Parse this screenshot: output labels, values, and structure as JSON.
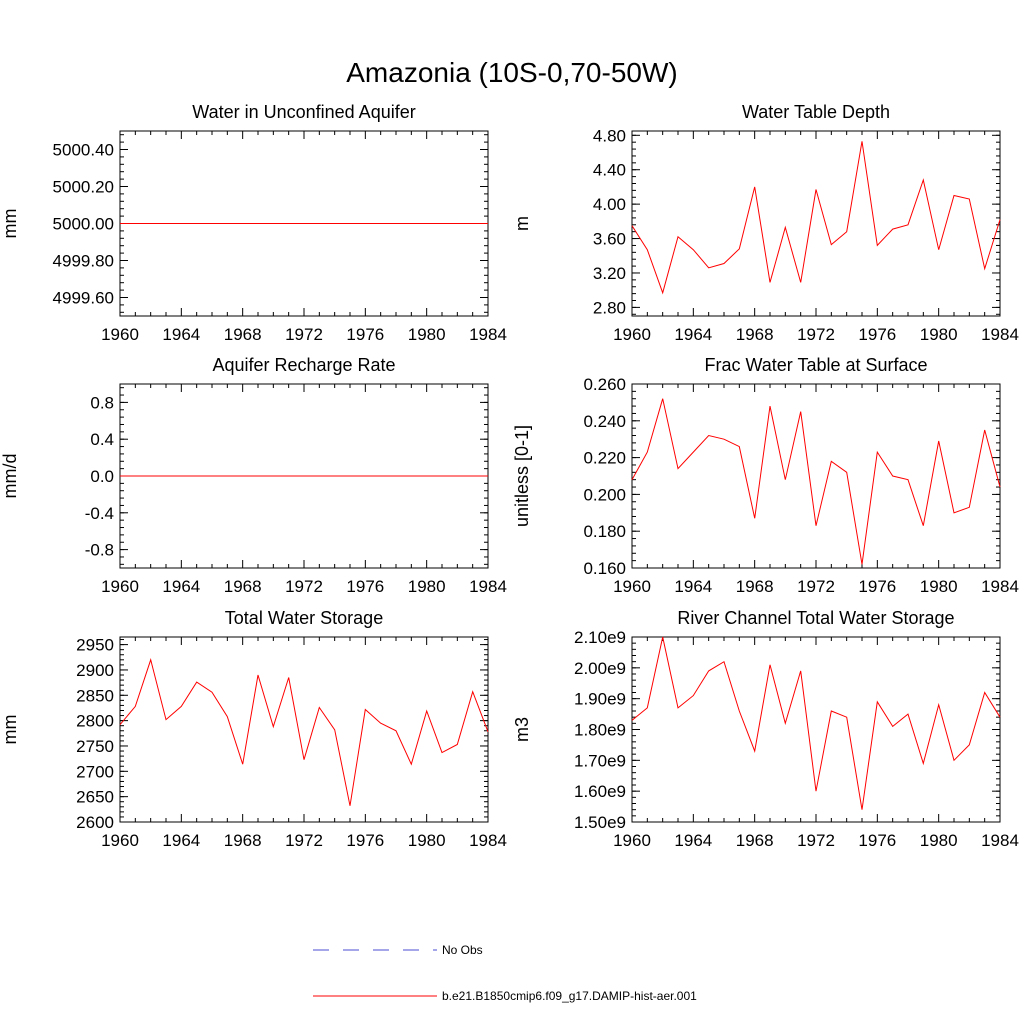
{
  "title": "Amazonia (10S-0,70-50W)",
  "colors": {
    "series": "#ff0000",
    "obs": "#4b4bd6",
    "axis": "#000000"
  },
  "legend": [
    {
      "label": "No Obs",
      "style": "dashed"
    },
    {
      "label": "b.e21.B1850cmip6.f09_g17.DAMIP-hist-aer.001",
      "style": "solid"
    }
  ],
  "chart_data": [
    {
      "type": "line",
      "title": "Water in Unconfined Aquifer",
      "ylabel": "mm",
      "xlim": [
        1960,
        1984
      ],
      "ylim": [
        4999.5,
        5000.5
      ],
      "x_ticks": [
        "1960",
        "1964",
        "1968",
        "1972",
        "1976",
        "1980",
        "1984"
      ],
      "y_ticks": [
        {
          "v": 4999.6,
          "label": "4999.60"
        },
        {
          "v": 4999.8,
          "label": "4999.80"
        },
        {
          "v": 5000.0,
          "label": "5000.00"
        },
        {
          "v": 5000.2,
          "label": "5000.20"
        },
        {
          "v": 5000.4,
          "label": "5000.40"
        }
      ],
      "series": [
        {
          "x": [
            1960,
            1961,
            1962,
            1963,
            1964,
            1965,
            1966,
            1967,
            1968,
            1969,
            1970,
            1971,
            1972,
            1973,
            1974,
            1975,
            1976,
            1977,
            1978,
            1979,
            1980,
            1981,
            1982,
            1983,
            1984
          ],
          "values": [
            5000,
            5000,
            5000,
            5000,
            5000,
            5000,
            5000,
            5000,
            5000,
            5000,
            5000,
            5000,
            5000,
            5000,
            5000,
            5000,
            5000,
            5000,
            5000,
            5000,
            5000,
            5000,
            5000,
            5000,
            5000
          ]
        }
      ]
    },
    {
      "type": "line",
      "title": "Water Table Depth",
      "ylabel": "m",
      "xlim": [
        1960,
        1984
      ],
      "ylim": [
        2.7,
        4.85
      ],
      "x_ticks": [
        "1960",
        "1964",
        "1968",
        "1972",
        "1976",
        "1980",
        "1984"
      ],
      "y_ticks": [
        {
          "v": 2.8,
          "label": "2.80"
        },
        {
          "v": 3.2,
          "label": "3.20"
        },
        {
          "v": 3.6,
          "label": "3.60"
        },
        {
          "v": 4.0,
          "label": "4.00"
        },
        {
          "v": 4.4,
          "label": "4.40"
        },
        {
          "v": 4.8,
          "label": "4.80"
        }
      ],
      "series": [
        {
          "x": [
            1960,
            1961,
            1962,
            1963,
            1964,
            1965,
            1966,
            1967,
            1968,
            1969,
            1970,
            1971,
            1972,
            1973,
            1974,
            1975,
            1976,
            1977,
            1978,
            1979,
            1980,
            1981,
            1982,
            1983,
            1984
          ],
          "values": [
            3.75,
            3.47,
            2.97,
            3.62,
            3.47,
            3.26,
            3.31,
            3.48,
            4.2,
            3.09,
            3.73,
            3.09,
            4.17,
            3.53,
            3.68,
            4.73,
            3.52,
            3.71,
            3.76,
            4.28,
            3.47,
            4.1,
            4.06,
            3.25,
            3.82
          ]
        }
      ]
    },
    {
      "type": "line",
      "title": "Aquifer Recharge Rate",
      "ylabel": "mm/d",
      "xlim": [
        1960,
        1984
      ],
      "ylim": [
        -1.0,
        1.0
      ],
      "x_ticks": [
        "1960",
        "1964",
        "1968",
        "1972",
        "1976",
        "1980",
        "1984"
      ],
      "y_ticks": [
        {
          "v": -0.8,
          "label": "-0.8"
        },
        {
          "v": -0.4,
          "label": "-0.4"
        },
        {
          "v": 0.0,
          "label": "0.0"
        },
        {
          "v": 0.4,
          "label": "0.4"
        },
        {
          "v": 0.8,
          "label": "0.8"
        }
      ],
      "series": [
        {
          "x": [
            1960,
            1961,
            1962,
            1963,
            1964,
            1965,
            1966,
            1967,
            1968,
            1969,
            1970,
            1971,
            1972,
            1973,
            1974,
            1975,
            1976,
            1977,
            1978,
            1979,
            1980,
            1981,
            1982,
            1983,
            1984
          ],
          "values": [
            0,
            0,
            0,
            0,
            0,
            0,
            0,
            0,
            0,
            0,
            0,
            0,
            0,
            0,
            0,
            0,
            0,
            0,
            0,
            0,
            0,
            0,
            0,
            0,
            0
          ]
        }
      ]
    },
    {
      "type": "line",
      "title": "Frac Water Table at Surface",
      "ylabel": "unitless [0-1]",
      "xlim": [
        1960,
        1984
      ],
      "ylim": [
        0.16,
        0.26
      ],
      "x_ticks": [
        "1960",
        "1964",
        "1968",
        "1972",
        "1976",
        "1980",
        "1984"
      ],
      "y_ticks": [
        {
          "v": 0.16,
          "label": "0.160"
        },
        {
          "v": 0.18,
          "label": "0.180"
        },
        {
          "v": 0.2,
          "label": "0.200"
        },
        {
          "v": 0.22,
          "label": "0.220"
        },
        {
          "v": 0.24,
          "label": "0.240"
        },
        {
          "v": 0.26,
          "label": "0.260"
        }
      ],
      "series": [
        {
          "x": [
            1960,
            1961,
            1962,
            1963,
            1964,
            1965,
            1966,
            1967,
            1968,
            1969,
            1970,
            1971,
            1972,
            1973,
            1974,
            1975,
            1976,
            1977,
            1978,
            1979,
            1980,
            1981,
            1982,
            1983,
            1984
          ],
          "values": [
            0.208,
            0.223,
            0.252,
            0.214,
            0.223,
            0.232,
            0.23,
            0.226,
            0.187,
            0.248,
            0.208,
            0.245,
            0.183,
            0.218,
            0.212,
            0.162,
            0.223,
            0.21,
            0.208,
            0.183,
            0.229,
            0.19,
            0.193,
            0.235,
            0.204
          ]
        }
      ]
    },
    {
      "type": "line",
      "title": "Total Water Storage",
      "ylabel": "mm",
      "xlim": [
        1960,
        1984
      ],
      "ylim": [
        2600,
        2965
      ],
      "x_ticks": [
        "1960",
        "1964",
        "1968",
        "1972",
        "1976",
        "1980",
        "1984"
      ],
      "y_ticks": [
        {
          "v": 2600,
          "label": "2600"
        },
        {
          "v": 2650,
          "label": "2650"
        },
        {
          "v": 2700,
          "label": "2700"
        },
        {
          "v": 2750,
          "label": "2750"
        },
        {
          "v": 2800,
          "label": "2800"
        },
        {
          "v": 2850,
          "label": "2850"
        },
        {
          "v": 2900,
          "label": "2900"
        },
        {
          "v": 2950,
          "label": "2950"
        }
      ],
      "series": [
        {
          "x": [
            1960,
            1961,
            1962,
            1963,
            1964,
            1965,
            1966,
            1967,
            1968,
            1969,
            1970,
            1971,
            1972,
            1973,
            1974,
            1975,
            1976,
            1977,
            1978,
            1979,
            1980,
            1981,
            1982,
            1983,
            1984
          ],
          "values": [
            2792,
            2828,
            2920,
            2802,
            2828,
            2876,
            2856,
            2808,
            2714,
            2890,
            2788,
            2885,
            2723,
            2826,
            2782,
            2632,
            2822,
            2795,
            2780,
            2714,
            2819,
            2737,
            2753,
            2857,
            2778
          ]
        }
      ]
    },
    {
      "type": "line",
      "title": "River Channel Total Water Storage",
      "ylabel": "m3",
      "xlim": [
        1960,
        1984
      ],
      "ylim": [
        1500000000.0,
        2100000000.0
      ],
      "x_ticks": [
        "1960",
        "1964",
        "1968",
        "1972",
        "1976",
        "1980",
        "1984"
      ],
      "y_ticks": [
        {
          "v": 1500000000.0,
          "label": "1.50e9"
        },
        {
          "v": 1600000000.0,
          "label": "1.60e9"
        },
        {
          "v": 1700000000.0,
          "label": "1.70e9"
        },
        {
          "v": 1800000000.0,
          "label": "1.80e9"
        },
        {
          "v": 1900000000.0,
          "label": "1.90e9"
        },
        {
          "v": 2000000000.0,
          "label": "2.00e9"
        },
        {
          "v": 2100000000.0,
          "label": "2.10e9"
        }
      ],
      "series": [
        {
          "x": [
            1960,
            1961,
            1962,
            1963,
            1964,
            1965,
            1966,
            1967,
            1968,
            1969,
            1970,
            1971,
            1972,
            1973,
            1974,
            1975,
            1976,
            1977,
            1978,
            1979,
            1980,
            1981,
            1982,
            1983,
            1984
          ],
          "values": [
            1830000000.0,
            1870000000.0,
            2100000000.0,
            1870000000.0,
            1910000000.0,
            1990000000.0,
            2020000000.0,
            1860000000.0,
            1730000000.0,
            2010000000.0,
            1820000000.0,
            1990000000.0,
            1600000000.0,
            1860000000.0,
            1840000000.0,
            1540000000.0,
            1890000000.0,
            1810000000.0,
            1850000000.0,
            1690000000.0,
            1880000000.0,
            1700000000.0,
            1750000000.0,
            1920000000.0,
            1840000000.0
          ]
        }
      ]
    }
  ]
}
